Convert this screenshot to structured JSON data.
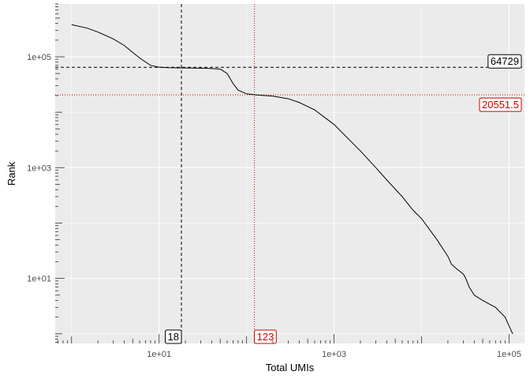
{
  "chart_data": {
    "type": "line",
    "title": "",
    "xlabel": "Total UMIs",
    "ylabel": "Rank",
    "x_scale": "log10",
    "y_scale": "log10",
    "xlim": [
      0.65,
      150000
    ],
    "ylim": [
      0.67,
      900000
    ],
    "grid": true,
    "panel_background": "#ebebeb",
    "grid_color": "#ffffff",
    "x_ticks": [
      10,
      1000,
      100000
    ],
    "x_tick_labels": [
      "1e+01",
      "1e+03",
      "1e+05"
    ],
    "y_ticks": [
      10,
      1000,
      100000
    ],
    "y_tick_labels": [
      "1e+01",
      "1e+03",
      "1e+05"
    ],
    "series": [
      {
        "color": "#000000",
        "points": [
          [
            1,
            380000
          ],
          [
            1.5,
            330000
          ],
          [
            2,
            280000
          ],
          [
            3,
            210000
          ],
          [
            4,
            160000
          ],
          [
            5,
            120000
          ],
          [
            6,
            95000
          ],
          [
            8,
            70000
          ],
          [
            10,
            65000
          ],
          [
            13,
            63500
          ],
          [
            18,
            63000
          ],
          [
            25,
            62500
          ],
          [
            35,
            62000
          ],
          [
            50,
            60000
          ],
          [
            60,
            50000
          ],
          [
            70,
            33000
          ],
          [
            80,
            25000
          ],
          [
            100,
            21500
          ],
          [
            130,
            20500
          ],
          [
            200,
            19500
          ],
          [
            300,
            17500
          ],
          [
            400,
            15000
          ],
          [
            600,
            11000
          ],
          [
            1000,
            6000
          ],
          [
            2000,
            2000
          ],
          [
            3000,
            1000
          ],
          [
            4000,
            600
          ],
          [
            6000,
            300
          ],
          [
            8000,
            170
          ],
          [
            10000,
            120
          ],
          [
            15000,
            50
          ],
          [
            20000,
            25
          ],
          [
            22000,
            18
          ],
          [
            25000,
            15
          ],
          [
            30000,
            12
          ],
          [
            32000,
            10
          ],
          [
            35000,
            7
          ],
          [
            40000,
            5
          ],
          [
            50000,
            4
          ],
          [
            70000,
            3
          ],
          [
            90000,
            2
          ],
          [
            110000,
            1
          ]
        ]
      }
    ],
    "reference_lines": [
      {
        "axis": "x",
        "value": 18,
        "label": "18",
        "color": "#000000",
        "style": "dashed"
      },
      {
        "axis": "x",
        "value": 123,
        "label": "123",
        "color": "#cc0000",
        "style": "dotted"
      },
      {
        "axis": "y",
        "value": 64729,
        "label": "64729",
        "color": "#000000",
        "style": "dashed"
      },
      {
        "axis": "y",
        "value": 20551.5,
        "label": "20551.5",
        "color": "#cc0000",
        "style": "dotted"
      }
    ]
  }
}
